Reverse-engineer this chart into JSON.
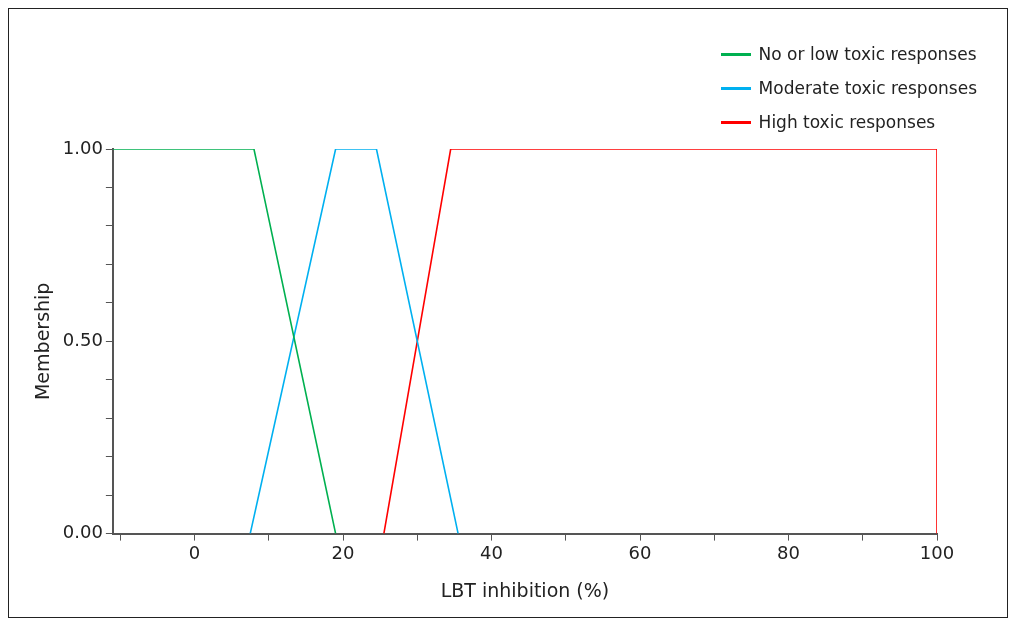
{
  "chart_data": {
    "type": "line",
    "xlabel": "LBT inhibition (%)",
    "ylabel": "Membership",
    "xlim": [
      -11,
      100
    ],
    "xticks": [
      {
        "value": -10,
        "label": null
      },
      0,
      {
        "value": 10,
        "label": null
      },
      20,
      {
        "value": 30,
        "label": null
      },
      40,
      {
        "value": 50,
        "label": null
      },
      60,
      {
        "value": 70,
        "label": null
      },
      80,
      {
        "value": 90,
        "label": null
      },
      100
    ],
    "ylim": [
      0,
      1
    ],
    "yticks": [
      {
        "value": 0,
        "label": "0.00"
      },
      {
        "value": 0.1,
        "label": null
      },
      {
        "value": 0.2,
        "label": null
      },
      {
        "value": 0.3,
        "label": null
      },
      {
        "value": 0.4,
        "label": null
      },
      {
        "value": 0.5,
        "label": "0.50"
      },
      {
        "value": 0.6,
        "label": null
      },
      {
        "value": 0.7,
        "label": null
      },
      {
        "value": 0.8,
        "label": null
      },
      {
        "value": 0.9,
        "label": null
      },
      {
        "value": 1,
        "label": "1.00"
      }
    ],
    "grid": false,
    "legend": "top right",
    "marker": "none",
    "line_style": "solid",
    "series": [
      {
        "name": "No or low toxic responses",
        "color": "#00b050",
        "x": [
          -11,
          8,
          19
        ],
        "values": [
          1,
          1,
          0
        ]
      },
      {
        "name": "Moderate toxic responses",
        "color": "#00b0f0",
        "x": [
          7.5,
          19,
          24.5,
          35.5
        ],
        "values": [
          0,
          1,
          1,
          0
        ]
      },
      {
        "name": "High toxic responses",
        "color": "#ff0000",
        "x": [
          25.5,
          34.5,
          100,
          100
        ],
        "values": [
          0,
          1,
          1,
          0
        ]
      }
    ]
  }
}
